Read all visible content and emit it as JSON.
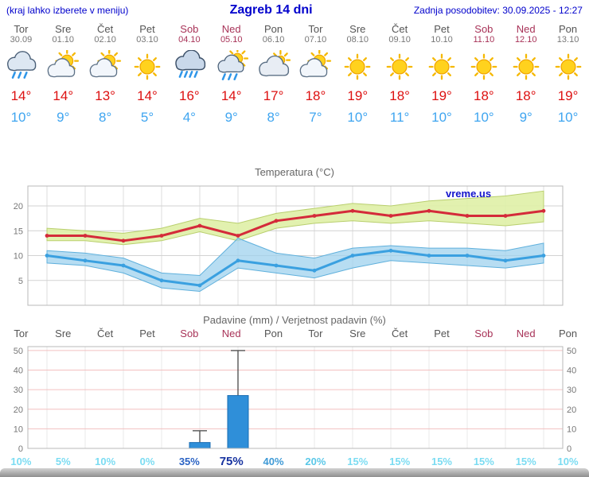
{
  "header": {
    "hint": "(kraj lahko izberete v meniju)",
    "title": "Zagreb 14 dni",
    "updated": "Zadnja posodobitev: 30.09.2025 - 12:27"
  },
  "colors": {
    "header_blue": "#0000cc",
    "weekday": "#555555",
    "weekend": "#a83358",
    "tmax_red": "#dd1111",
    "tmin_blue": "#3fa5f0",
    "bar_blue": "#2f8fd9",
    "watermark_blue": "#1414cc"
  },
  "days": [
    {
      "name": "Tor",
      "date": "30.09",
      "weekend": false,
      "icon": "rain",
      "tmax": 14,
      "tmin": 10
    },
    {
      "name": "Sre",
      "date": "01.10",
      "weekend": false,
      "icon": "partly-cloudy",
      "tmax": 14,
      "tmin": 9
    },
    {
      "name": "Čet",
      "date": "02.10",
      "weekend": false,
      "icon": "partly-cloudy",
      "tmax": 13,
      "tmin": 8
    },
    {
      "name": "Pet",
      "date": "03.10",
      "weekend": false,
      "icon": "sunny",
      "tmax": 14,
      "tmin": 5
    },
    {
      "name": "Sob",
      "date": "04.10",
      "weekend": true,
      "icon": "rain-heavy",
      "tmax": 16,
      "tmin": 4
    },
    {
      "name": "Ned",
      "date": "05.10",
      "weekend": true,
      "icon": "sun-rain",
      "tmax": 14,
      "tmin": 9
    },
    {
      "name": "Pon",
      "date": "06.10",
      "weekend": false,
      "icon": "cloudy",
      "tmax": 17,
      "tmin": 8
    },
    {
      "name": "Tor",
      "date": "07.10",
      "weekend": false,
      "icon": "partly-cloudy",
      "tmax": 18,
      "tmin": 7
    },
    {
      "name": "Sre",
      "date": "08.10",
      "weekend": false,
      "icon": "sunny",
      "tmax": 19,
      "tmin": 10
    },
    {
      "name": "Čet",
      "date": "09.10",
      "weekend": false,
      "icon": "sunny",
      "tmax": 18,
      "tmin": 11
    },
    {
      "name": "Pet",
      "date": "10.10",
      "weekend": false,
      "icon": "sunny",
      "tmax": 19,
      "tmin": 10
    },
    {
      "name": "Sob",
      "date": "11.10",
      "weekend": true,
      "icon": "sunny",
      "tmax": 18,
      "tmin": 10
    },
    {
      "name": "Ned",
      "date": "12.10",
      "weekend": true,
      "icon": "sunny",
      "tmax": 18,
      "tmin": 9
    },
    {
      "name": "Pon",
      "date": "13.10",
      "weekend": false,
      "icon": "sunny",
      "tmax": 19,
      "tmin": 10
    }
  ],
  "precip_probabilities": [
    {
      "label": "10%",
      "color": "#7bdcf2",
      "emph": false
    },
    {
      "label": "5%",
      "color": "#7bdcf2",
      "emph": false
    },
    {
      "label": "10%",
      "color": "#7bdcf2",
      "emph": false
    },
    {
      "label": "0%",
      "color": "#7bdcf2",
      "emph": false
    },
    {
      "label": "35%",
      "color": "#2b63c4",
      "emph": false
    },
    {
      "label": "75%",
      "color": "#1733a0",
      "emph": true
    },
    {
      "label": "40%",
      "color": "#3f9ad6",
      "emph": false
    },
    {
      "label": "20%",
      "color": "#5ac8e8",
      "emph": false
    },
    {
      "label": "15%",
      "color": "#7bdcf2",
      "emph": false
    },
    {
      "label": "15%",
      "color": "#7bdcf2",
      "emph": false
    },
    {
      "label": "15%",
      "color": "#7bdcf2",
      "emph": false
    },
    {
      "label": "15%",
      "color": "#7bdcf2",
      "emph": false
    },
    {
      "label": "15%",
      "color": "#7bdcf2",
      "emph": false
    },
    {
      "label": "10%",
      "color": "#7bdcf2",
      "emph": false
    }
  ],
  "chart_data": [
    {
      "type": "line",
      "title": "Temperatura (°C)",
      "watermark": "vreme.us",
      "categories": [
        "Tor",
        "Sre",
        "Čet",
        "Pet",
        "Sob",
        "Ned",
        "Pon",
        "Tor",
        "Sre",
        "Čet",
        "Pet",
        "Sob",
        "Ned",
        "Pon"
      ],
      "series": [
        {
          "name": "max temperature",
          "color": "#d42b3a",
          "values": [
            14,
            14,
            13,
            14,
            16,
            14,
            17,
            18,
            19,
            18,
            19,
            18,
            18,
            19
          ]
        },
        {
          "name": "min temperature",
          "color": "#3aa0e0",
          "values": [
            10,
            9,
            8,
            5,
            4,
            9,
            8,
            7,
            10,
            11,
            10,
            10,
            9,
            10
          ]
        }
      ],
      "bands": [
        {
          "name": "max ensemble range",
          "color": "#dff0a6",
          "edge": "#b9cf6e",
          "opacity": 0.9,
          "upper": [
            15.5,
            15,
            14.5,
            15.5,
            17.5,
            16.5,
            18.5,
            19.5,
            20.5,
            20,
            21,
            21.5,
            22,
            23
          ],
          "lower": [
            13,
            13,
            12.2,
            13,
            14.8,
            13,
            15.5,
            16.5,
            17,
            16.5,
            17,
            16.5,
            16,
            16.8
          ]
        },
        {
          "name": "min ensemble range",
          "color": "#9fd2ee",
          "edge": "#5fb0dc",
          "opacity": 0.75,
          "upper": [
            11,
            10.5,
            9.5,
            6.5,
            6,
            13.5,
            10.5,
            9.5,
            11.5,
            12,
            11.5,
            11.5,
            11,
            12.5
          ],
          "lower": [
            8.5,
            8,
            6.5,
            3.5,
            2.8,
            7.5,
            6.5,
            5.5,
            7.5,
            9,
            8.5,
            8,
            7.5,
            8.5
          ]
        }
      ],
      "ylim": [
        0,
        24
      ],
      "yticks": [
        5,
        10,
        15,
        20
      ],
      "grid": true,
      "legend": "none"
    },
    {
      "type": "bar",
      "title": "Padavine (mm) / Verjetnost padavin (%)",
      "categories": [
        "Tor",
        "Sre",
        "Čet",
        "Pet",
        "Sob",
        "Ned",
        "Pon",
        "Tor",
        "Sre",
        "Čet",
        "Pet",
        "Sob",
        "Ned",
        "Pon"
      ],
      "values_mm": [
        0,
        0,
        0,
        0,
        3,
        27,
        0,
        0,
        0,
        0,
        0,
        0,
        0,
        0
      ],
      "whisker_max_mm": [
        0,
        0,
        0,
        0,
        9,
        50,
        0,
        0,
        0,
        0,
        0,
        0,
        0,
        0
      ],
      "probabilities_pct": [
        10,
        5,
        10,
        0,
        35,
        75,
        40,
        20,
        15,
        15,
        15,
        15,
        15,
        10
      ],
      "ylim": [
        0,
        52
      ],
      "yticks": [
        0,
        10,
        20,
        30,
        40,
        50
      ],
      "grid": true,
      "legend": "none"
    }
  ]
}
